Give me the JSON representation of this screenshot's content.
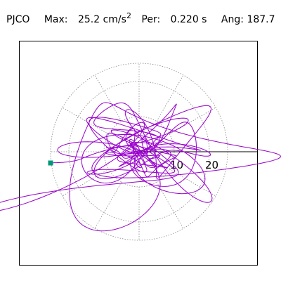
{
  "header": {
    "station": "PJCO",
    "max_label": "Max:",
    "max_value": "25.2",
    "max_unit": "cm/s",
    "max_unit_exp": "2",
    "per_label": "Per:",
    "per_value": "0.220 s",
    "ang_label": "Ang:",
    "ang_value": "187.7"
  },
  "chart_data": {
    "type": "polar-particle-motion",
    "radial_rings": [
      10,
      20
    ],
    "radial_max": 25.2,
    "tick_labels": [
      "10",
      "20"
    ],
    "spoke_count": 12,
    "grid": "dotted",
    "trace_color": "#9900cc",
    "end_marker_color": "#009977",
    "end_point": {
      "x": -25.2,
      "y": -3.2
    },
    "trace_components": [
      {
        "ax": 2.0,
        "ay": 1.6,
        "fx": 1.0,
        "fy": 1.3,
        "px": 0.0,
        "py": 0.4
      },
      {
        "ax": 1.5,
        "ay": 1.8,
        "fx": 2.7,
        "fy": 2.3,
        "px": 1.1,
        "py": 2.0
      },
      {
        "ax": 2.6,
        "ay": 2.2,
        "fx": 4.1,
        "fy": 3.8,
        "px": 2.5,
        "py": 0.7
      },
      {
        "ax": 1.2,
        "ay": 1.4,
        "fx": 6.3,
        "fy": 5.9,
        "px": 0.9,
        "py": 3.3
      }
    ]
  }
}
